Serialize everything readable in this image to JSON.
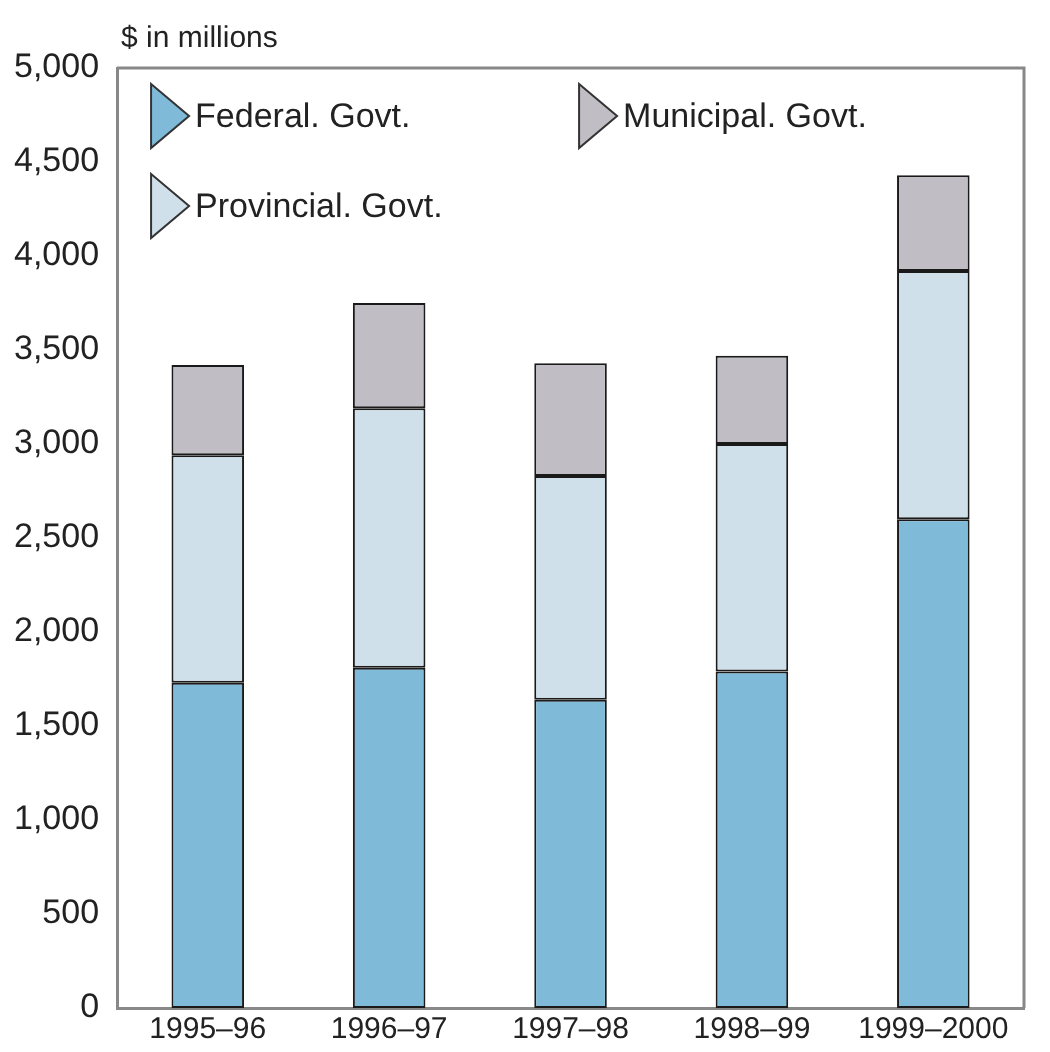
{
  "chart_data": {
    "type": "bar",
    "stacked": true,
    "ylabel": "$ in millions",
    "categories": [
      "1995–96",
      "1996–97",
      "1997–98",
      "1998–99",
      "1999–2000"
    ],
    "series": [
      {
        "name": "Federal. Govt.",
        "color": "#7fbbd9",
        "values": [
          1730,
          1810,
          1640,
          1790,
          2600
        ]
      },
      {
        "name": "Provincial. Govt.",
        "color": "#d0e0ea",
        "values": [
          1210,
          1380,
          1190,
          1210,
          1320
        ]
      },
      {
        "name": "Municipal. Govt.",
        "color": "#c0bec4",
        "values": [
          480,
          560,
          600,
          470,
          510
        ]
      }
    ],
    "ylim": [
      0,
      5000
    ],
    "yticks": [
      0,
      500,
      {
        "value": 1000,
        "label": "1,000"
      },
      {
        "value": 1500,
        "label": "1,500"
      },
      {
        "value": 2000,
        "label": "2,000"
      },
      {
        "value": 2500,
        "label": "2,500"
      },
      {
        "value": 3000,
        "label": "3,000"
      },
      {
        "value": 3500,
        "label": "3,500"
      },
      {
        "value": 4000,
        "label": "4,000"
      },
      {
        "value": 4500,
        "label": "4,500"
      },
      {
        "value": 5000,
        "label": "5,000"
      }
    ],
    "grid": false,
    "legend": "top left"
  }
}
